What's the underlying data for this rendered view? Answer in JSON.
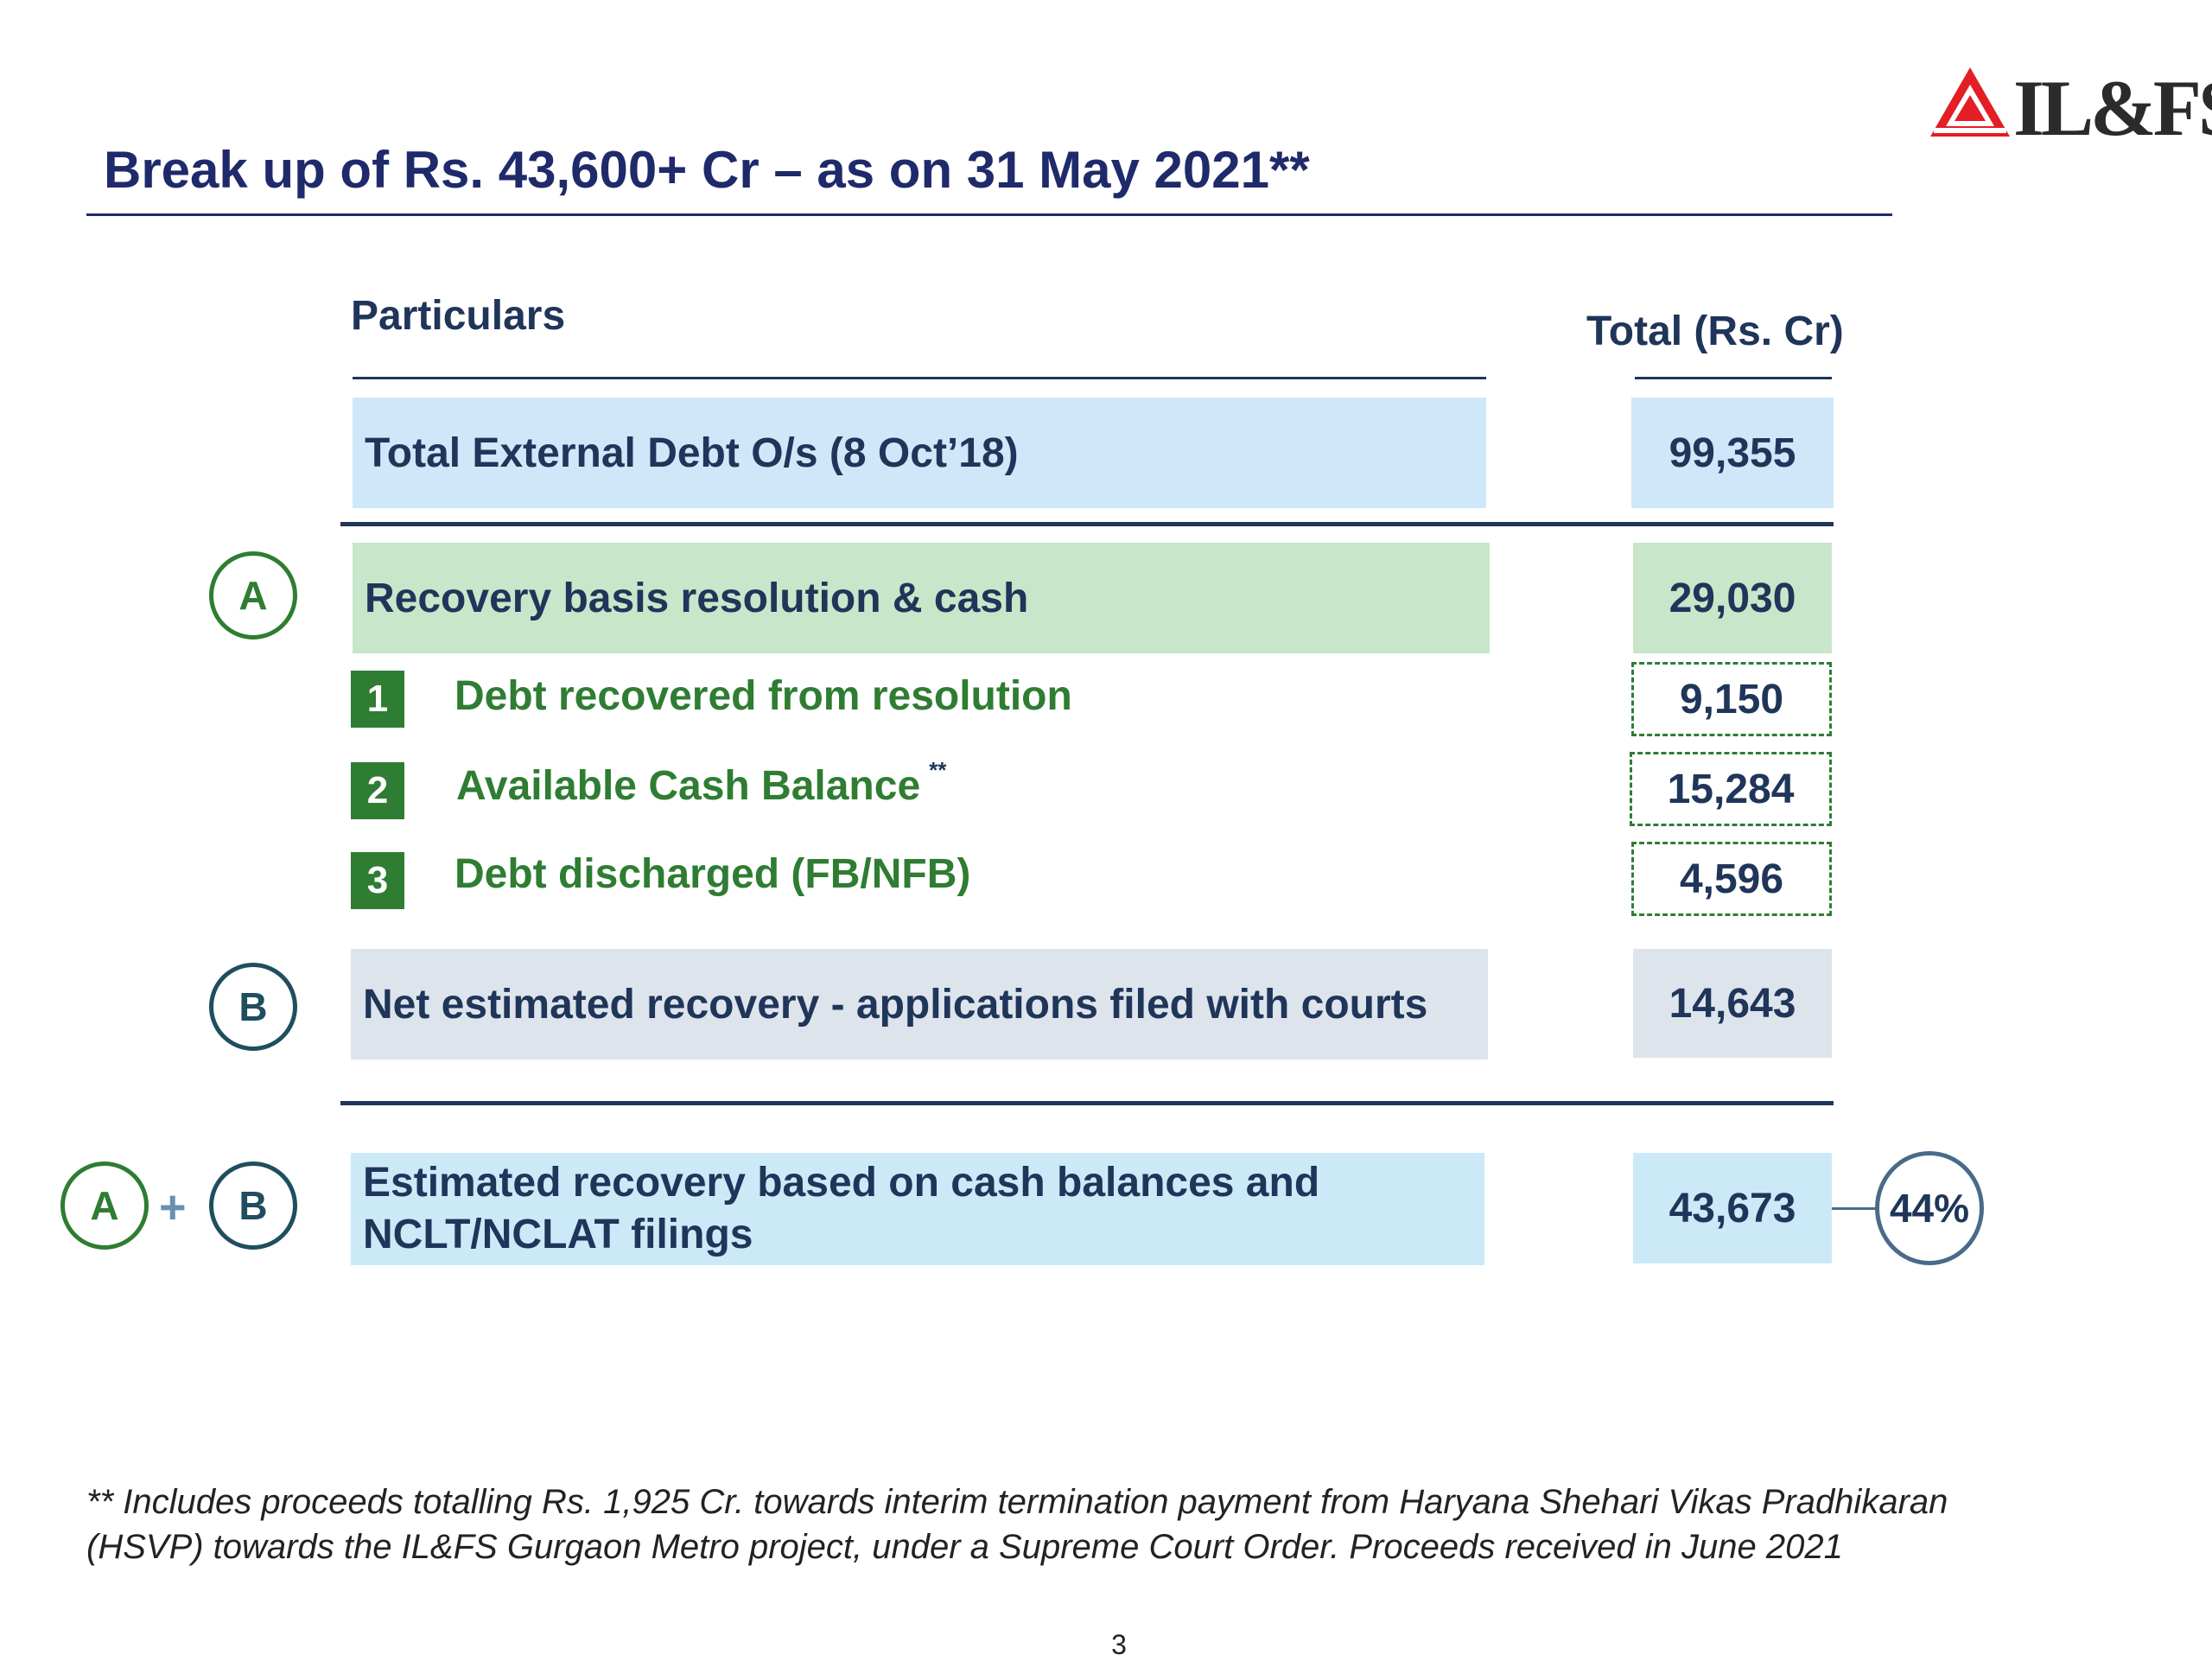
{
  "header": {
    "title": "Break up of Rs. 43,600+ Cr – as on 31 May 2021**",
    "logo_text": "IL&FS",
    "logo_icon": "ilfs-logo-icon",
    "brand_color": "#e31e24"
  },
  "table": {
    "col_particulars": "Particulars",
    "col_total": "Total (Rs. Cr)",
    "total_debt": {
      "label": "Total External Debt O/s (8 Oct’18)",
      "value": "99,355"
    },
    "a_row": {
      "marker": "A",
      "label": "Recovery basis resolution & cash",
      "value": "29,030"
    },
    "sub_items": [
      {
        "num": "1",
        "label": "Debt recovered from resolution",
        "value": "9,150"
      },
      {
        "num": "2",
        "label": "Available Cash Balance",
        "sup": "**",
        "value": "15,284"
      },
      {
        "num": "3",
        "label": "Debt discharged (FB/NFB)",
        "value": "4,596"
      }
    ],
    "b_row": {
      "marker": "B",
      "label": "Net estimated recovery - applications filed with courts",
      "value": "14,643"
    },
    "ab_row": {
      "marker_a": "A",
      "plus": "+",
      "marker_b": "B",
      "label_line1": "Estimated recovery based on cash balances and",
      "label_line2": "NCLT/NCLAT filings",
      "value": "43,673",
      "percent": "44%"
    }
  },
  "footnote": {
    "line1": "** Includes proceeds totalling Rs. 1,925 Cr. towards interim termination payment from Haryana Shehari Vikas Pradhikaran",
    "line2": "(HSVP) towards the IL&FS Gurgaon Metro project, under a Supreme Court Order. Proceeds received in June 2021"
  },
  "page_number": "3"
}
